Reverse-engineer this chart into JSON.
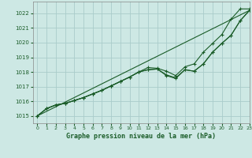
{
  "title": "Graphe pression niveau de la mer (hPa)",
  "background_color": "#cde8e4",
  "grid_color": "#aaccca",
  "line_color": "#1a5c28",
  "marker_color": "#1a5c28",
  "xlim": [
    -0.5,
    23
  ],
  "ylim": [
    1014.5,
    1022.8
  ],
  "yticks": [
    1015,
    1016,
    1017,
    1018,
    1019,
    1020,
    1021,
    1022
  ],
  "xticks": [
    0,
    1,
    2,
    3,
    4,
    5,
    6,
    7,
    8,
    9,
    10,
    11,
    12,
    13,
    14,
    15,
    16,
    17,
    18,
    19,
    20,
    21,
    22,
    23
  ],
  "series": [
    [
      1015.0,
      1015.5,
      1015.75,
      1015.85,
      1016.05,
      1016.25,
      1016.5,
      1016.75,
      1017.05,
      1017.35,
      1017.65,
      1018.0,
      1018.15,
      1018.2,
      1017.8,
      1017.6,
      1018.15,
      1018.05,
      1018.55,
      1019.35,
      1019.95,
      1020.5,
      1021.5,
      1022.2
    ],
    [
      1015.0,
      1015.5,
      1015.75,
      1015.85,
      1016.05,
      1016.25,
      1016.5,
      1016.75,
      1017.05,
      1017.35,
      1017.65,
      1018.0,
      1018.3,
      1018.25,
      1018.05,
      1017.75,
      1018.35,
      1018.55,
      1019.35,
      1019.95,
      1020.55,
      1021.6,
      1022.3,
      1022.3
    ],
    [
      1015.0,
      1015.5,
      1015.75,
      1015.85,
      1016.05,
      1016.25,
      1016.5,
      1016.75,
      1017.05,
      1017.35,
      1017.65,
      1018.0,
      1018.15,
      1018.2,
      1017.75,
      1017.55,
      1018.15,
      1018.05,
      1018.55,
      1019.35,
      1019.95,
      1020.5,
      1021.5,
      1022.2
    ]
  ],
  "straight_line_y": [
    1015.0,
    1022.2
  ],
  "straight_line_x": [
    0,
    23
  ]
}
